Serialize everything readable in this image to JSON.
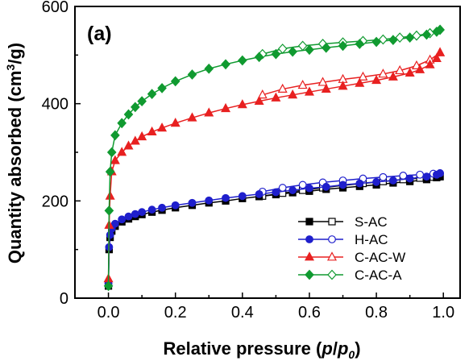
{
  "chart_data": {
    "type": "line",
    "panel_label": "(a)",
    "xlabel_parts": [
      "Relative pressure (",
      "p",
      "/",
      "p",
      "0",
      ")"
    ],
    "ylabel_parts": [
      "Quantity absorbed (cm",
      "3",
      "/g)"
    ],
    "xlim": [
      -0.1,
      1.05
    ],
    "ylim": [
      0,
      600
    ],
    "xticks": [
      "0.0",
      "0.2",
      "0.4",
      "0.6",
      "0.8",
      "1.0"
    ],
    "xtick_values": [
      0,
      0.2,
      0.4,
      0.6,
      0.8,
      1.0
    ],
    "yticks": [
      "0",
      "200",
      "400",
      "600"
    ],
    "ytick_values": [
      0,
      200,
      400,
      600
    ],
    "legend_position": "bottom-right",
    "series": [
      {
        "name": "S-AC",
        "color": "#000000",
        "marker": "square",
        "adsorption": {
          "x": [
            0.0,
            0.002,
            0.005,
            0.01,
            0.02,
            0.04,
            0.06,
            0.08,
            0.1,
            0.13,
            0.16,
            0.2,
            0.25,
            0.3,
            0.35,
            0.4,
            0.45,
            0.5,
            0.55,
            0.6,
            0.65,
            0.7,
            0.75,
            0.8,
            0.85,
            0.9,
            0.95,
            0.98,
            0.99
          ],
          "y": [
            25,
            100,
            125,
            138,
            148,
            157,
            163,
            168,
            172,
            177,
            181,
            186,
            191,
            196,
            200,
            205,
            209,
            213,
            217,
            220,
            224,
            227,
            230,
            233,
            237,
            240,
            244,
            248,
            250
          ]
        },
        "desorption": {
          "x": [
            0.99,
            0.97,
            0.93,
            0.88,
            0.82,
            0.76,
            0.7,
            0.64,
            0.58,
            0.52,
            0.46
          ],
          "y": [
            250,
            249,
            247,
            244,
            240,
            236,
            232,
            227,
            222,
            216,
            210
          ]
        }
      },
      {
        "name": "H-AC",
        "color": "#1f1fcc",
        "marker": "circle",
        "adsorption": {
          "x": [
            0.0,
            0.002,
            0.005,
            0.01,
            0.02,
            0.04,
            0.06,
            0.08,
            0.1,
            0.13,
            0.16,
            0.2,
            0.25,
            0.3,
            0.35,
            0.4,
            0.45,
            0.5,
            0.55,
            0.6,
            0.65,
            0.7,
            0.75,
            0.8,
            0.85,
            0.9,
            0.95,
            0.98,
            0.99
          ],
          "y": [
            30,
            105,
            130,
            143,
            153,
            162,
            168,
            173,
            177,
            182,
            186,
            191,
            196,
            201,
            206,
            210,
            214,
            218,
            222,
            226,
            229,
            233,
            236,
            239,
            242,
            246,
            250,
            254,
            257
          ]
        },
        "desorption": {
          "x": [
            0.99,
            0.97,
            0.93,
            0.88,
            0.82,
            0.76,
            0.7,
            0.64,
            0.58,
            0.52,
            0.46
          ],
          "y": [
            257,
            256,
            254,
            252,
            249,
            246,
            242,
            238,
            233,
            227,
            219
          ]
        }
      },
      {
        "name": "C-AC-W",
        "color": "#e82020",
        "marker": "triangle",
        "adsorption": {
          "x": [
            0.0,
            0.002,
            0.005,
            0.01,
            0.02,
            0.04,
            0.06,
            0.08,
            0.1,
            0.13,
            0.16,
            0.2,
            0.25,
            0.3,
            0.35,
            0.4,
            0.45,
            0.5,
            0.55,
            0.6,
            0.65,
            0.7,
            0.75,
            0.8,
            0.85,
            0.9,
            0.93,
            0.96,
            0.98,
            0.99
          ],
          "y": [
            40,
            150,
            210,
            260,
            283,
            300,
            313,
            323,
            332,
            342,
            350,
            360,
            371,
            381,
            390,
            398,
            405,
            412,
            418,
            424,
            430,
            436,
            442,
            448,
            455,
            463,
            470,
            480,
            493,
            505
          ]
        },
        "desorption": {
          "x": [
            0.99,
            0.96,
            0.92,
            0.87,
            0.82,
            0.76,
            0.7,
            0.64,
            0.58,
            0.52,
            0.46
          ],
          "y": [
            505,
            490,
            478,
            468,
            461,
            455,
            450,
            444,
            438,
            430,
            418
          ]
        }
      },
      {
        "name": "C-AC-A",
        "color": "#109a30",
        "marker": "diamond",
        "adsorption": {
          "x": [
            0.0,
            0.002,
            0.005,
            0.01,
            0.02,
            0.04,
            0.06,
            0.08,
            0.1,
            0.13,
            0.16,
            0.2,
            0.25,
            0.3,
            0.35,
            0.4,
            0.45,
            0.5,
            0.55,
            0.6,
            0.65,
            0.7,
            0.75,
            0.8,
            0.85,
            0.9,
            0.95,
            0.98,
            0.99
          ],
          "y": [
            25,
            180,
            260,
            300,
            335,
            360,
            378,
            393,
            405,
            420,
            432,
            446,
            460,
            472,
            481,
            489,
            496,
            502,
            507,
            511,
            515,
            519,
            523,
            527,
            531,
            536,
            542,
            548,
            552
          ]
        },
        "desorption": {
          "x": [
            0.99,
            0.96,
            0.92,
            0.87,
            0.82,
            0.76,
            0.7,
            0.64,
            0.58,
            0.52,
            0.46
          ],
          "y": [
            552,
            545,
            540,
            536,
            532,
            529,
            526,
            523,
            519,
            513,
            502
          ]
        }
      }
    ]
  }
}
